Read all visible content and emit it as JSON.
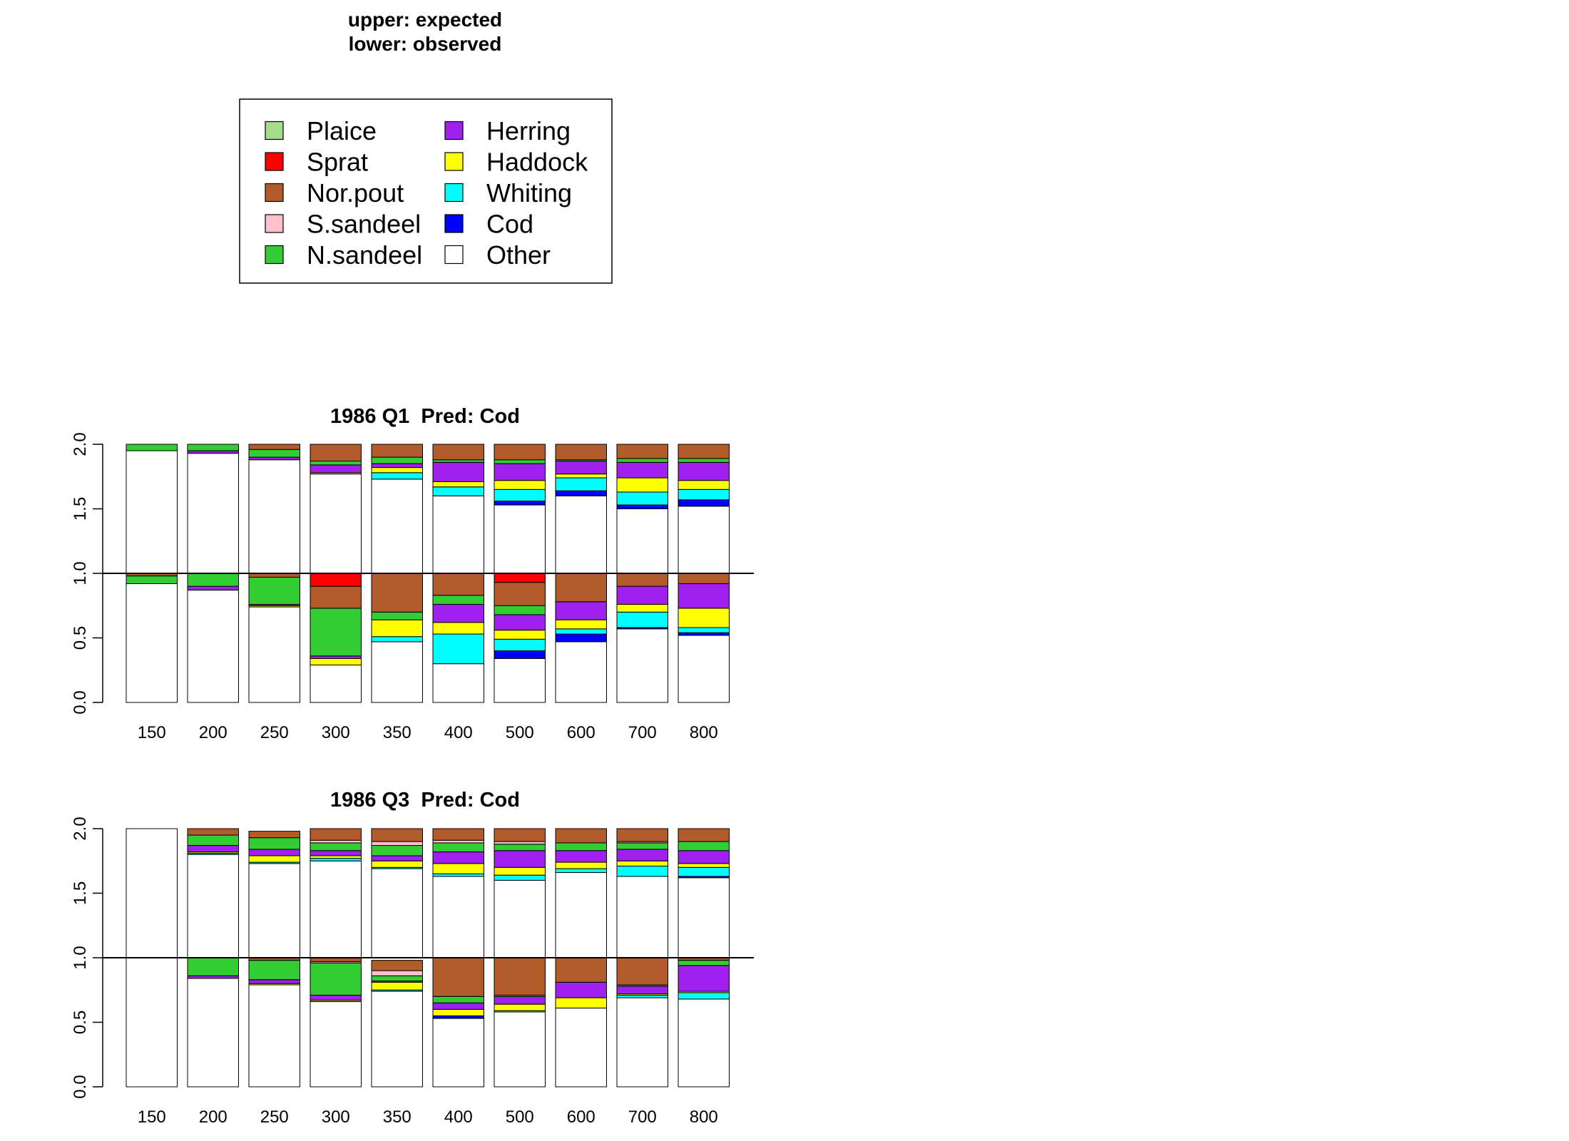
{
  "header": {
    "line1": "upper: expected",
    "line2": "lower: observed"
  },
  "legend": {
    "placement": "top-left",
    "items": [
      {
        "name": "Plaice",
        "color": "#a6dd8c"
      },
      {
        "name": "Sprat",
        "color": "#ff0000"
      },
      {
        "name": "Nor.pout",
        "color": "#b35a2b"
      },
      {
        "name": "S.sandeel",
        "color": "#ffc0cb"
      },
      {
        "name": "N.sandeel",
        "color": "#32cd32"
      },
      {
        "name": "Herring",
        "color": "#a020f0"
      },
      {
        "name": "Haddock",
        "color": "#ffff00"
      },
      {
        "name": "Whiting",
        "color": "#00ffff"
      },
      {
        "name": "Cod",
        "color": "#0000ff"
      },
      {
        "name": "Other",
        "color": "#ffffff"
      }
    ]
  },
  "chart_data": [
    {
      "type": "bar",
      "stacked": true,
      "title": "1986 Q1  Pred: Cod",
      "xlabel": "",
      "ylabel": "",
      "ylim": [
        0,
        2
      ],
      "yticks": [
        "0.0",
        "0.5",
        "1.0",
        "1.5",
        "2.0"
      ],
      "reference_line": 1.0,
      "categories": [
        "150",
        "200",
        "250",
        "300",
        "350",
        "400",
        "500",
        "600",
        "700",
        "800"
      ],
      "stack_order": [
        "Other",
        "Cod",
        "Whiting",
        "Haddock",
        "Herring",
        "N.sandeel",
        "S.sandeel",
        "Nor.pout",
        "Sprat",
        "Plaice"
      ],
      "upper_expected": [
        {
          "Other": 0.95,
          "N.sandeel": 0.05
        },
        {
          "Other": 0.93,
          "Herring": 0.02,
          "N.sandeel": 0.05
        },
        {
          "Other": 0.88,
          "Herring": 0.02,
          "N.sandeel": 0.06,
          "Nor.pout": 0.04
        },
        {
          "Other": 0.77,
          "Haddock": 0.01,
          "Herring": 0.06,
          "N.sandeel": 0.03,
          "Nor.pout": 0.13
        },
        {
          "Other": 0.73,
          "Whiting": 0.05,
          "Haddock": 0.04,
          "Herring": 0.03,
          "N.sandeel": 0.05,
          "Nor.pout": 0.1
        },
        {
          "Other": 0.6,
          "Whiting": 0.07,
          "Haddock": 0.04,
          "Herring": 0.15,
          "N.sandeel": 0.02,
          "Nor.pout": 0.12
        },
        {
          "Other": 0.53,
          "Cod": 0.03,
          "Whiting": 0.09,
          "Haddock": 0.07,
          "Herring": 0.13,
          "N.sandeel": 0.03,
          "Nor.pout": 0.12
        },
        {
          "Other": 0.6,
          "Cod": 0.04,
          "Whiting": 0.1,
          "Haddock": 0.03,
          "Herring": 0.1,
          "N.sandeel": 0.01,
          "Nor.pout": 0.12
        },
        {
          "Other": 0.5,
          "Cod": 0.03,
          "Whiting": 0.1,
          "Haddock": 0.11,
          "Herring": 0.12,
          "N.sandeel": 0.03,
          "Nor.pout": 0.11
        },
        {
          "Other": 0.52,
          "Cod": 0.05,
          "Whiting": 0.08,
          "Haddock": 0.07,
          "Herring": 0.14,
          "N.sandeel": 0.03,
          "Nor.pout": 0.11
        }
      ],
      "lower_observed": [
        {
          "Other": 0.92,
          "N.sandeel": 0.06,
          "Nor.pout": 0.02
        },
        {
          "Other": 0.87,
          "Herring": 0.03,
          "N.sandeel": 0.1
        },
        {
          "Other": 0.74,
          "Haddock": 0.01,
          "Herring": 0.01,
          "N.sandeel": 0.21,
          "Nor.pout": 0.03
        },
        {
          "Other": 0.29,
          "Haddock": 0.05,
          "Herring": 0.02,
          "N.sandeel": 0.37,
          "Nor.pout": 0.17,
          "Sprat": 0.1
        },
        {
          "Other": 0.47,
          "Whiting": 0.04,
          "Haddock": 0.13,
          "N.sandeel": 0.06,
          "Nor.pout": 0.3
        },
        {
          "Other": 0.3,
          "Whiting": 0.23,
          "Haddock": 0.09,
          "Herring": 0.14,
          "N.sandeel": 0.07,
          "Nor.pout": 0.17
        },
        {
          "Other": 0.34,
          "Cod": 0.06,
          "Whiting": 0.09,
          "Haddock": 0.07,
          "Herring": 0.12,
          "N.sandeel": 0.07,
          "Nor.pout": 0.18,
          "Sprat": 0.07
        },
        {
          "Other": 0.47,
          "Cod": 0.06,
          "Whiting": 0.04,
          "Haddock": 0.07,
          "Herring": 0.14,
          "Nor.pout": 0.22
        },
        {
          "Other": 0.57,
          "Cod": 0.01,
          "Whiting": 0.12,
          "Haddock": 0.06,
          "Herring": 0.14,
          "Nor.pout": 0.1
        },
        {
          "Other": 0.52,
          "Cod": 0.02,
          "Whiting": 0.04,
          "Haddock": 0.15,
          "Herring": 0.19,
          "Nor.pout": 0.08
        }
      ]
    },
    {
      "type": "bar",
      "stacked": true,
      "title": "1986 Q3  Pred: Cod",
      "xlabel": "",
      "ylabel": "",
      "ylim": [
        0,
        2
      ],
      "yticks": [
        "0.0",
        "0.5",
        "1.0",
        "1.5",
        "2.0"
      ],
      "reference_line": 1.0,
      "categories": [
        "150",
        "200",
        "250",
        "300",
        "350",
        "400",
        "500",
        "600",
        "700",
        "800"
      ],
      "stack_order": [
        "Other",
        "Cod",
        "Whiting",
        "Haddock",
        "Herring",
        "N.sandeel",
        "S.sandeel",
        "Nor.pout",
        "Sprat",
        "Plaice"
      ],
      "upper_expected": [
        {
          "Other": 1.0
        },
        {
          "Other": 0.8,
          "Whiting": 0.01,
          "Haddock": 0.01,
          "Herring": 0.05,
          "N.sandeel": 0.08,
          "Nor.pout": 0.05
        },
        {
          "Other": 0.73,
          "Whiting": 0.01,
          "Haddock": 0.05,
          "Herring": 0.05,
          "N.sandeel": 0.09,
          "Nor.pout": 0.05
        },
        {
          "Other": 0.75,
          "Whiting": 0.02,
          "Haddock": 0.02,
          "Herring": 0.04,
          "N.sandeel": 0.06,
          "S.sandeel": 0.02,
          "Nor.pout": 0.09
        },
        {
          "Other": 0.69,
          "Whiting": 0.01,
          "Haddock": 0.05,
          "Herring": 0.04,
          "N.sandeel": 0.08,
          "S.sandeel": 0.03,
          "Nor.pout": 0.1
        },
        {
          "Other": 0.63,
          "Whiting": 0.02,
          "Haddock": 0.08,
          "Herring": 0.09,
          "N.sandeel": 0.07,
          "S.sandeel": 0.02,
          "Nor.pout": 0.09
        },
        {
          "Other": 0.6,
          "Whiting": 0.04,
          "Haddock": 0.06,
          "Herring": 0.13,
          "N.sandeel": 0.05,
          "S.sandeel": 0.02,
          "Nor.pout": 0.1
        },
        {
          "Other": 0.66,
          "Whiting": 0.03,
          "Haddock": 0.05,
          "Herring": 0.09,
          "N.sandeel": 0.06,
          "Nor.pout": 0.11
        },
        {
          "Other": 0.63,
          "Whiting": 0.08,
          "Haddock": 0.04,
          "Herring": 0.09,
          "N.sandeel": 0.05,
          "S.sandeel": 0.01,
          "Nor.pout": 0.1
        },
        {
          "Other": 0.62,
          "Cod": 0.01,
          "Whiting": 0.07,
          "Haddock": 0.03,
          "Herring": 0.1,
          "N.sandeel": 0.07,
          "Nor.pout": 0.1
        }
      ],
      "lower_observed": [
        {
          "Other": 1.0
        },
        {
          "Other": 0.84,
          "Herring": 0.02,
          "N.sandeel": 0.14
        },
        {
          "Other": 0.79,
          "Haddock": 0.01,
          "Herring": 0.03,
          "N.sandeel": 0.15,
          "Nor.pout": 0.02
        },
        {
          "Other": 0.66,
          "Haddock": 0.01,
          "Herring": 0.04,
          "N.sandeel": 0.25,
          "S.sandeel": 0.01,
          "Nor.pout": 0.03
        },
        {
          "Other": 0.74,
          "Whiting": 0.01,
          "Haddock": 0.06,
          "Herring": 0.01,
          "N.sandeel": 0.04,
          "S.sandeel": 0.04,
          "Nor.pout": 0.08
        },
        {
          "Other": 0.53,
          "Cod": 0.02,
          "Haddock": 0.05,
          "Herring": 0.05,
          "N.sandeel": 0.05,
          "Nor.pout": 0.3
        },
        {
          "Other": 0.58,
          "Whiting": 0.01,
          "Haddock": 0.05,
          "Herring": 0.06,
          "N.sandeel": 0.01,
          "Nor.pout": 0.29
        },
        {
          "Other": 0.61,
          "Haddock": 0.08,
          "Herring": 0.12,
          "Nor.pout": 0.19
        },
        {
          "Other": 0.69,
          "Whiting": 0.02,
          "Haddock": 0.01,
          "Herring": 0.06,
          "N.sandeel": 0.01,
          "Nor.pout": 0.21
        },
        {
          "Other": 0.68,
          "Whiting": 0.05,
          "Haddock": 0.01,
          "Herring": 0.2,
          "N.sandeel": 0.04,
          "Nor.pout": 0.02
        }
      ]
    }
  ]
}
